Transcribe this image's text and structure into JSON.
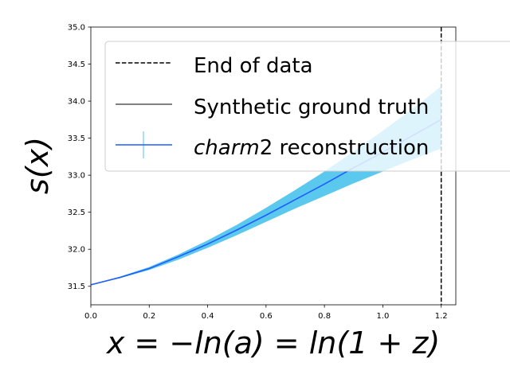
{
  "chart_data": {
    "type": "line",
    "title": "",
    "xlabel": "x = −ln(a) = ln(1 + z)",
    "ylabel": "s(x)",
    "xlim": [
      0,
      1.25
    ],
    "ylim": [
      31.25,
      35.0
    ],
    "xticks": [
      "0.0",
      "0.2",
      "0.4",
      "0.6",
      "0.8",
      "1.0",
      "1.2"
    ],
    "xtick_values": [
      0.0,
      0.2,
      0.4,
      0.6,
      0.8,
      1.0,
      1.2
    ],
    "yticks": [
      "31.5",
      "32.0",
      "32.5",
      "33.0",
      "33.5",
      "34.0",
      "34.5",
      "35.0"
    ],
    "ytick_values": [
      31.5,
      32.0,
      32.5,
      33.0,
      33.5,
      34.0,
      34.5,
      35.0
    ],
    "grid": false,
    "legend_position": "top-right",
    "end_of_data_x": 1.2,
    "series": [
      {
        "name": "End of data",
        "style": "dashed",
        "color": "#000000"
      },
      {
        "name": "Synthetic ground truth",
        "style": "solid",
        "color": "#000000"
      },
      {
        "name": "charm2 reconstruction",
        "name_italic": "charm",
        "name_rest": "2 reconstruction",
        "style": "solid",
        "color": "#1f5fff",
        "band_color": "#5bc8ee",
        "x": [
          0.0,
          0.1,
          0.2,
          0.3,
          0.4,
          0.5,
          0.6,
          0.7,
          0.8,
          0.9,
          1.0,
          1.1,
          1.2
        ],
        "y": [
          31.52,
          31.62,
          31.74,
          31.9,
          32.07,
          32.26,
          32.46,
          32.67,
          32.88,
          33.1,
          33.31,
          33.53,
          33.75
        ],
        "lower": [
          31.52,
          31.61,
          31.72,
          31.86,
          32.02,
          32.19,
          32.37,
          32.55,
          32.72,
          32.89,
          33.05,
          33.21,
          33.36
        ],
        "upper": [
          31.52,
          31.63,
          31.76,
          31.93,
          32.12,
          32.33,
          32.56,
          32.8,
          33.05,
          33.32,
          33.6,
          33.89,
          34.2
        ]
      }
    ]
  }
}
